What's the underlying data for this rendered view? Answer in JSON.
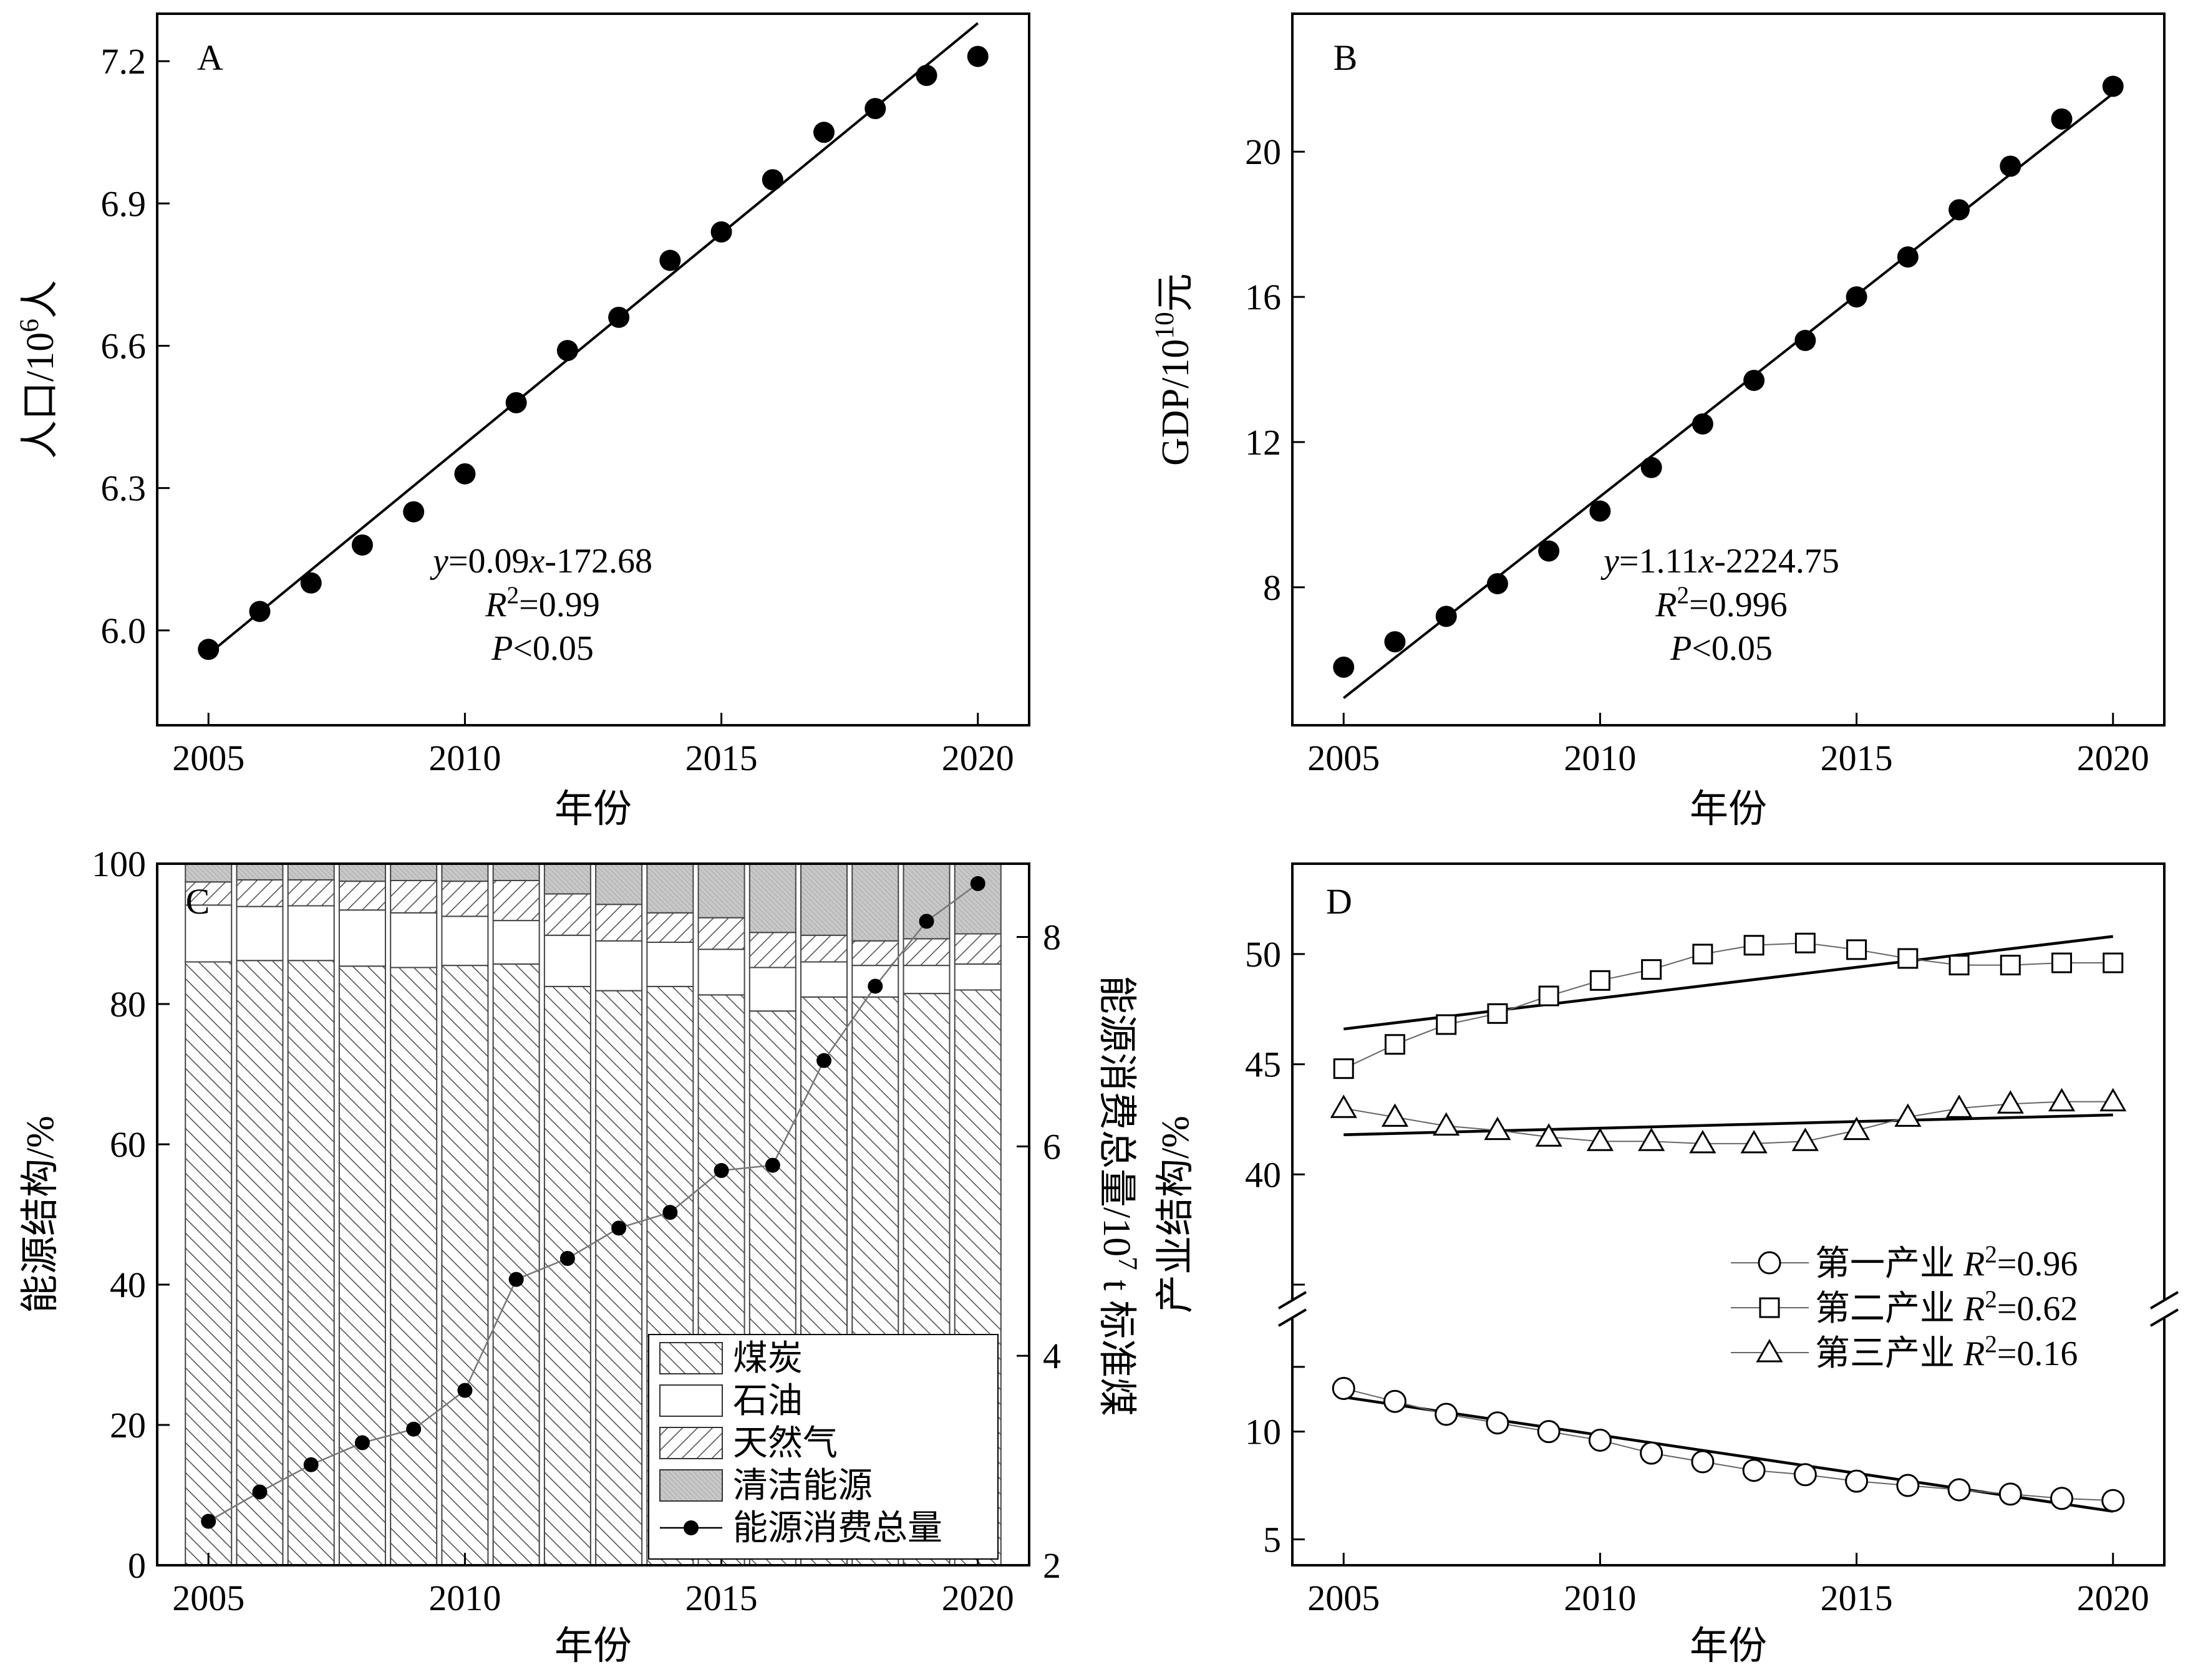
{
  "chart_data": [
    {
      "panel": "A",
      "type": "scatter",
      "xlabel": "年份",
      "ylabel": "人口/10⁶人",
      "xlim": [
        2004,
        2021
      ],
      "ylim": [
        5.8,
        7.3
      ],
      "xticks": [
        "2005",
        "2010",
        "2015",
        "2020"
      ],
      "yticks": [
        "6.0",
        "6.3",
        "6.6",
        "6.9",
        "7.2"
      ],
      "x": [
        2005,
        2006,
        2007,
        2008,
        2009,
        2010,
        2011,
        2012,
        2013,
        2014,
        2015,
        2016,
        2017,
        2018,
        2019,
        2020
      ],
      "y": [
        5.96,
        6.04,
        6.1,
        6.18,
        6.25,
        6.33,
        6.48,
        6.59,
        6.66,
        6.78,
        6.84,
        6.95,
        7.05,
        7.1,
        7.17,
        7.21
      ],
      "fit": {
        "x": [
          2005,
          2020
        ],
        "y": [
          5.95,
          7.28
        ]
      },
      "annotation": {
        "equation": "y=0.09x-172.68",
        "r2": "R²=0.99",
        "p": "P<0.05"
      }
    },
    {
      "panel": "B",
      "type": "scatter",
      "xlabel": "年份",
      "ylabel": "GDP/10¹⁰元",
      "xlim": [
        2004,
        2021
      ],
      "ylim": [
        4.2,
        23.8
      ],
      "xticks": [
        "2005",
        "2010",
        "2015",
        "2020"
      ],
      "yticks": [
        "8",
        "12",
        "16",
        "20"
      ],
      "x": [
        2005,
        2006,
        2007,
        2008,
        2009,
        2010,
        2011,
        2012,
        2013,
        2014,
        2015,
        2016,
        2017,
        2018,
        2019,
        2020
      ],
      "y": [
        5.8,
        6.5,
        7.2,
        8.1,
        9.0,
        10.1,
        11.3,
        12.5,
        13.7,
        14.8,
        16.0,
        17.1,
        18.4,
        19.6,
        20.9,
        21.8
      ],
      "fit": {
        "x": [
          2005,
          2020
        ],
        "y": [
          4.95,
          21.6
        ]
      },
      "annotation": {
        "equation": "y=1.11x-2224.75",
        "r2": "R²=0.996",
        "p": "P<0.05"
      }
    },
    {
      "panel": "C",
      "type": "bar",
      "stacked": true,
      "xlabel": "年份",
      "ylabel": "能源结构/%",
      "y2label": "能源消费总量/10⁷ t 标准煤",
      "xlim": [
        2004,
        2021
      ],
      "ylim": [
        0,
        100
      ],
      "y2lim": [
        2,
        8.7
      ],
      "xticks": [
        "2005",
        "2010",
        "2015",
        "2020"
      ],
      "yticks": [
        "0",
        "20",
        "40",
        "60",
        "80",
        "100"
      ],
      "y2ticks": [
        "2",
        "4",
        "6",
        "8"
      ],
      "categories": [
        2005,
        2006,
        2007,
        2008,
        2009,
        2010,
        2011,
        2012,
        2013,
        2014,
        2015,
        2016,
        2017,
        2018,
        2019,
        2020
      ],
      "series": [
        {
          "name": "煤炭",
          "values": [
            86,
            86.2,
            86.2,
            85.4,
            85.2,
            85.5,
            85.7,
            82.5,
            81.9,
            82.5,
            81.3,
            79,
            81,
            81,
            81.5,
            82
          ]
        },
        {
          "name": "石油",
          "values": [
            8.1,
            7.7,
            7.8,
            8.0,
            7.8,
            7.0,
            6.2,
            7.3,
            7.1,
            6.3,
            6.5,
            6.2,
            5.0,
            4.5,
            4.0,
            3.7
          ]
        },
        {
          "name": "天然气",
          "values": [
            3.3,
            3.8,
            3.7,
            4.1,
            4.6,
            5.0,
            5.7,
            5.9,
            5.2,
            4.2,
            4.5,
            5.0,
            3.8,
            3.5,
            3.8,
            4.3
          ]
        },
        {
          "name": "清洁能源",
          "values": [
            2.6,
            2.3,
            2.3,
            2.5,
            2.4,
            2.5,
            2.4,
            4.3,
            5.8,
            7.0,
            7.7,
            9.8,
            10.2,
            11.0,
            10.7,
            10.0
          ]
        }
      ],
      "line_series": {
        "name": "能源消费总量",
        "values": [
          2.42,
          2.7,
          2.96,
          3.17,
          3.3,
          3.67,
          4.73,
          4.93,
          5.22,
          5.37,
          5.77,
          5.82,
          6.82,
          7.53,
          8.15,
          8.51
        ]
      },
      "legend": {
        "placement": "bottom-right",
        "entries": [
          "煤炭",
          "石油",
          "天然气",
          "清洁能源",
          "能源消费总量"
        ]
      }
    },
    {
      "panel": "D",
      "type": "scatter",
      "broken_axis": true,
      "xlabel": "年份",
      "ylabel": "产业结构/%",
      "xlim": [
        2004,
        2021
      ],
      "xticks": [
        "2005",
        "2010",
        "2015",
        "2020"
      ],
      "yticks": [
        "5",
        "10",
        "40",
        "45",
        "50"
      ],
      "x": [
        2005,
        2006,
        2007,
        2008,
        2009,
        2010,
        2011,
        2012,
        2013,
        2014,
        2015,
        2016,
        2017,
        2018,
        2019,
        2020
      ],
      "series": [
        {
          "name": "第一产业",
          "r2": "R²=0.96",
          "marker": "circle",
          "values": [
            12.0,
            11.4,
            10.8,
            10.4,
            10.0,
            9.6,
            9.0,
            8.6,
            8.2,
            8.0,
            7.7,
            7.5,
            7.3,
            7.1,
            6.9,
            6.8
          ],
          "fit": [
            11.6,
            6.3
          ]
        },
        {
          "name": "第二产业",
          "r2": "R²=0.62",
          "marker": "square",
          "values": [
            44.8,
            45.9,
            46.8,
            47.3,
            48.1,
            48.8,
            49.3,
            50.0,
            50.4,
            50.5,
            50.2,
            49.8,
            49.5,
            49.5,
            49.6,
            49.6
          ],
          "fit": [
            46.6,
            50.8
          ]
        },
        {
          "name": "第三产业",
          "r2": "R²=0.16",
          "marker": "triangle",
          "values": [
            43.0,
            42.6,
            42.2,
            42.0,
            41.7,
            41.5,
            41.5,
            41.4,
            41.4,
            41.5,
            42.0,
            42.6,
            43.0,
            43.2,
            43.3,
            43.3
          ],
          "fit": [
            41.8,
            42.7
          ]
        }
      ]
    }
  ]
}
